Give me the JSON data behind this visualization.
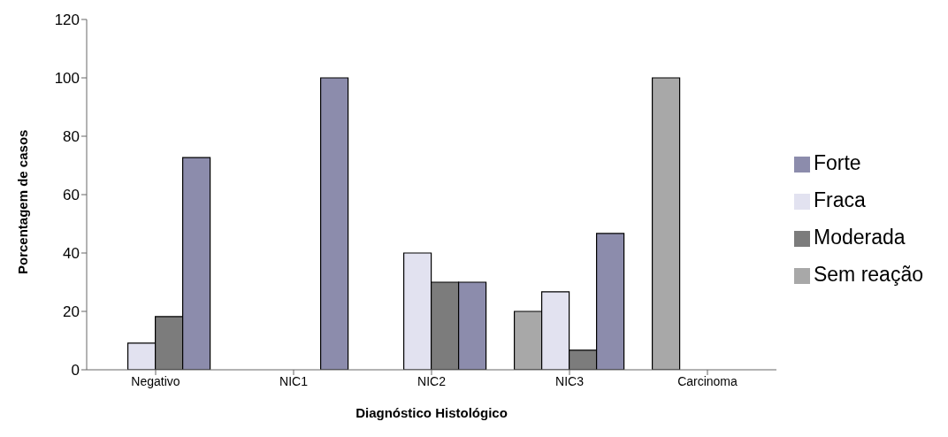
{
  "chart_data": {
    "type": "bar",
    "xlabel": "Diagnóstico Histológico",
    "ylabel": "Porcentagem de casos",
    "categories": [
      "Negativo",
      "NIC1",
      "NIC2",
      "NIC3",
      "Carcinoma"
    ],
    "series": [
      {
        "name": "Sem reação",
        "color": "#a8a8a8",
        "values": [
          0,
          0,
          0,
          20,
          100
        ]
      },
      {
        "name": "Fraca",
        "color": "#e2e2f0",
        "values": [
          9.1,
          0,
          40,
          26.7,
          0
        ]
      },
      {
        "name": "Moderada",
        "color": "#7c7c7c",
        "values": [
          18.2,
          0,
          30,
          6.7,
          0
        ]
      },
      {
        "name": "Forte",
        "color": "#8c8cac",
        "values": [
          72.7,
          100,
          30,
          46.7,
          0
        ]
      }
    ],
    "ylim": [
      0,
      120
    ],
    "yticks": [
      0,
      20,
      40,
      60,
      80,
      100,
      120
    ],
    "grid": false,
    "legend": "right"
  }
}
